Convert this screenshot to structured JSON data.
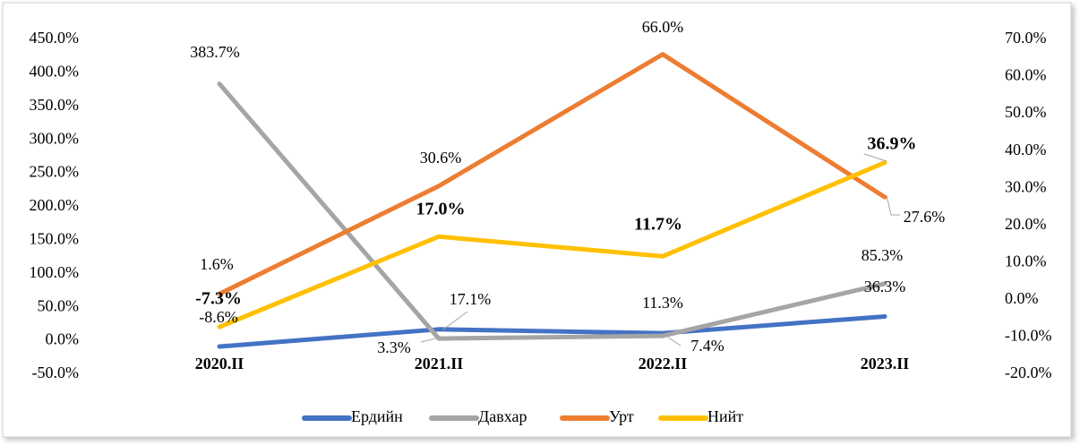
{
  "chart_data": {
    "type": "line",
    "categories": [
      "2020.II",
      "2021.II",
      "2022.II",
      "2023.II"
    ],
    "series": [
      {
        "name": "Ердийн",
        "color": "#4472c4",
        "axis": "y",
        "values": [
          -8.6,
          17.1,
          11.3,
          36.3
        ],
        "value_labels": [
          "-8.6%",
          "17.1%",
          "11.3%",
          "36.3%"
        ]
      },
      {
        "name": "Давхар",
        "color": "#a5a5a5",
        "axis": "y",
        "values": [
          383.7,
          3.3,
          7.4,
          85.3
        ],
        "value_labels": [
          "383.7%",
          "3.3%",
          "7.4%",
          "85.3%"
        ]
      },
      {
        "name": "Урт",
        "color": "#ed7d31",
        "axis": "y2",
        "values": [
          1.6,
          30.6,
          66.0,
          27.6
        ],
        "value_labels": [
          "1.6%",
          "30.6%",
          "66.0%",
          "27.6%"
        ]
      },
      {
        "name": "Нийт",
        "color": "#ffc000",
        "axis": "y2",
        "values": [
          -7.3,
          17.0,
          11.7,
          36.9
        ],
        "value_labels": [
          "-7.3%",
          "17.0%",
          "11.7%",
          "36.9%"
        ]
      }
    ],
    "ylim": [
      -50,
      450
    ],
    "yticks": [
      {
        "value": -50,
        "label": "-50.0%"
      },
      {
        "value": 0,
        "label": "0.0%"
      },
      {
        "value": 50,
        "label": "50.0%"
      },
      {
        "value": 100,
        "label": "100.0%"
      },
      {
        "value": 150,
        "label": "150.0%"
      },
      {
        "value": 200,
        "label": "200.0%"
      },
      {
        "value": 250,
        "label": "250.0%"
      },
      {
        "value": 300,
        "label": "300.0%"
      },
      {
        "value": 350,
        "label": "350.0%"
      },
      {
        "value": 400,
        "label": "400.0%"
      },
      {
        "value": 450,
        "label": "450.0%"
      }
    ],
    "y2lim": [
      -20,
      70
    ],
    "y2ticks": [
      {
        "value": -20,
        "label": "-20.0%"
      },
      {
        "value": -10,
        "label": "-10.0%"
      },
      {
        "value": 0,
        "label": "0.0%"
      },
      {
        "value": 10,
        "label": "10.0%"
      },
      {
        "value": 20,
        "label": "20.0%"
      },
      {
        "value": 30,
        "label": "30.0%"
      },
      {
        "value": 40,
        "label": "40.0%"
      },
      {
        "value": 50,
        "label": "50.0%"
      },
      {
        "value": 60,
        "label": "60.0%"
      },
      {
        "value": 70,
        "label": "70.0%"
      }
    ],
    "legend": "bottom"
  }
}
